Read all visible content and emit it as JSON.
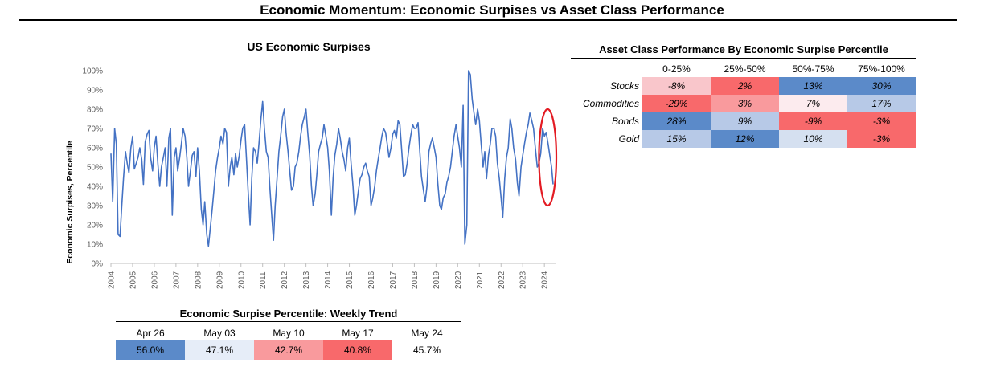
{
  "page_title": "Economic Momentum: Economic Surpises vs Asset Class Performance",
  "chart_data": {
    "type": "line",
    "title": "US Economic Surpises",
    "xlabel": "",
    "ylabel": "Economic Surpises, Percentile",
    "ylim": [
      0,
      100
    ],
    "yticks": [
      "0%",
      "10%",
      "20%",
      "30%",
      "40%",
      "50%",
      "60%",
      "70%",
      "80%",
      "90%",
      "100%"
    ],
    "xticks": [
      "2004",
      "2005",
      "2006",
      "2007",
      "2008",
      "2009",
      "2010",
      "2011",
      "2012",
      "2013",
      "2014",
      "2015",
      "2016",
      "2017",
      "2018",
      "2019",
      "2020",
      "2021",
      "2022",
      "2023",
      "2024"
    ],
    "xlim": [
      2004.0,
      2024.55
    ],
    "series_color": "#4472C4",
    "highlight_color": "#E31B23",
    "series": [
      {
        "x": [
          2004.0,
          2004.08,
          2004.17,
          2004.25,
          2004.33,
          2004.42,
          2004.5,
          2004.58,
          2004.67,
          2004.75,
          2004.83,
          2004.92,
          2005.0,
          2005.08,
          2005.17,
          2005.25,
          2005.33,
          2005.42,
          2005.5,
          2005.58,
          2005.67,
          2005.75,
          2005.83,
          2005.92,
          2006.0,
          2006.08,
          2006.17,
          2006.25,
          2006.33,
          2006.42,
          2006.5,
          2006.58,
          2006.67,
          2006.75,
          2006.83,
          2006.92,
          2007.0,
          2007.08,
          2007.17,
          2007.25,
          2007.33,
          2007.42,
          2007.5,
          2007.58,
          2007.67,
          2007.75,
          2007.83,
          2007.92,
          2008.0,
          2008.08,
          2008.17,
          2008.25,
          2008.33,
          2008.42,
          2008.5,
          2008.58,
          2008.67,
          2008.75,
          2008.83,
          2008.92,
          2009.0,
          2009.08,
          2009.17,
          2009.25,
          2009.33,
          2009.42,
          2009.5,
          2009.58,
          2009.67,
          2009.75,
          2009.83,
          2009.92,
          2010.0,
          2010.08,
          2010.17,
          2010.25,
          2010.33,
          2010.42,
          2010.5,
          2010.58,
          2010.67,
          2010.75,
          2010.83,
          2010.92,
          2011.0,
          2011.08,
          2011.17,
          2011.25,
          2011.33,
          2011.42,
          2011.5,
          2011.58,
          2011.67,
          2011.75,
          2011.83,
          2011.92,
          2012.0,
          2012.08,
          2012.17,
          2012.25,
          2012.33,
          2012.42,
          2012.5,
          2012.58,
          2012.67,
          2012.75,
          2012.83,
          2012.92,
          2013.0,
          2013.08,
          2013.17,
          2013.25,
          2013.33,
          2013.42,
          2013.5,
          2013.58,
          2013.67,
          2013.75,
          2013.83,
          2013.92,
          2014.0,
          2014.08,
          2014.17,
          2014.25,
          2014.33,
          2014.42,
          2014.5,
          2014.58,
          2014.67,
          2014.75,
          2014.83,
          2014.92,
          2015.0,
          2015.08,
          2015.17,
          2015.25,
          2015.33,
          2015.42,
          2015.5,
          2015.58,
          2015.67,
          2015.75,
          2015.83,
          2015.92,
          2016.0,
          2016.08,
          2016.17,
          2016.25,
          2016.33,
          2016.42,
          2016.5,
          2016.58,
          2016.67,
          2016.75,
          2016.83,
          2016.92,
          2017.0,
          2017.08,
          2017.17,
          2017.25,
          2017.33,
          2017.42,
          2017.5,
          2017.58,
          2017.67,
          2017.75,
          2017.83,
          2017.92,
          2018.0,
          2018.08,
          2018.17,
          2018.25,
          2018.33,
          2018.42,
          2018.5,
          2018.58,
          2018.67,
          2018.75,
          2018.83,
          2018.92,
          2019.0,
          2019.08,
          2019.17,
          2019.25,
          2019.33,
          2019.42,
          2019.5,
          2019.58,
          2019.67,
          2019.75,
          2019.83,
          2019.92,
          2020.0,
          2020.08,
          2020.17,
          2020.25,
          2020.33,
          2020.42,
          2020.5,
          2020.58,
          2020.67,
          2020.75,
          2020.83,
          2020.92,
          2021.0,
          2021.08,
          2021.17,
          2021.25,
          2021.33,
          2021.42,
          2021.5,
          2021.58,
          2021.67,
          2021.75,
          2021.83,
          2021.92,
          2022.0,
          2022.08,
          2022.17,
          2022.25,
          2022.33,
          2022.42,
          2022.5,
          2022.58,
          2022.67,
          2022.75,
          2022.83,
          2022.92,
          2023.0,
          2023.08,
          2023.17,
          2023.25,
          2023.33,
          2023.42,
          2023.5,
          2023.58,
          2023.67,
          2023.75,
          2023.83,
          2023.92,
          2024.0,
          2024.08,
          2024.17,
          2024.25,
          2024.33,
          2024.4
        ],
        "values": [
          57,
          32,
          70,
          62,
          15,
          14,
          30,
          44,
          58,
          52,
          47,
          60,
          66,
          49,
          52,
          55,
          60,
          54,
          41,
          63,
          67,
          69,
          55,
          48,
          60,
          66,
          51,
          40,
          50,
          55,
          60,
          40,
          65,
          70,
          25,
          55,
          60,
          48,
          55,
          62,
          70,
          66,
          55,
          40,
          48,
          56,
          58,
          45,
          60,
          48,
          28,
          20,
          32,
          15,
          9,
          18,
          28,
          38,
          48,
          55,
          60,
          66,
          62,
          70,
          68,
          40,
          50,
          55,
          46,
          57,
          50,
          56,
          64,
          70,
          72,
          55,
          38,
          20,
          44,
          60,
          58,
          52,
          62,
          75,
          84,
          70,
          58,
          55,
          40,
          25,
          12,
          30,
          45,
          58,
          66,
          76,
          80,
          68,
          58,
          48,
          38,
          40,
          50,
          52,
          58,
          66,
          72,
          76,
          80,
          68,
          56,
          40,
          30,
          36,
          46,
          58,
          62,
          65,
          72,
          66,
          60,
          48,
          25,
          44,
          56,
          62,
          70,
          65,
          58,
          54,
          48,
          60,
          65,
          52,
          40,
          25,
          30,
          38,
          44,
          46,
          50,
          52,
          48,
          45,
          30,
          34,
          40,
          48,
          54,
          60,
          66,
          70,
          68,
          62,
          55,
          60,
          67,
          69,
          65,
          74,
          72,
          58,
          45,
          46,
          52,
          60,
          66,
          72,
          70,
          70,
          73,
          58,
          45,
          38,
          32,
          40,
          58,
          62,
          65,
          60,
          55,
          42,
          30,
          28,
          34,
          36,
          42,
          45,
          50,
          58,
          66,
          72,
          66,
          60,
          50,
          82,
          10,
          20,
          100,
          98,
          85,
          78,
          72,
          80,
          74,
          62,
          50,
          58,
          44,
          56,
          62,
          70,
          70,
          66,
          52,
          44,
          34,
          24,
          44,
          55,
          60,
          75,
          70,
          60,
          54,
          42,
          35,
          50,
          56,
          62,
          68,
          72,
          78,
          74,
          70,
          60,
          50,
          52,
          57,
          70,
          66,
          68,
          62,
          56,
          50,
          41
        ]
      }
    ],
    "highlight": {
      "shape": "ellipse",
      "x_range": [
        2023.75,
        2024.55
      ],
      "y_range": [
        30,
        80
      ]
    }
  },
  "asset_table": {
    "title": "Asset Class Performance By Economic Surpise Percentile",
    "columns": [
      "0-25%",
      "25%-50%",
      "50%-75%",
      "75%-100%"
    ],
    "rows": [
      {
        "label": "Stocks",
        "values": [
          "-8%",
          "2%",
          "13%",
          "30%"
        ],
        "colors": [
          "#F9C6CB",
          "#F8696B",
          "#5B8AC9",
          "#5B8AC9"
        ]
      },
      {
        "label": "Commodities",
        "values": [
          "-29%",
          "3%",
          "7%",
          "17%"
        ],
        "colors": [
          "#F8696B",
          "#F99A9D",
          "#FCEBEE",
          "#B7C9E7"
        ]
      },
      {
        "label": "Bonds",
        "values": [
          "28%",
          "9%",
          "-9%",
          "-3%"
        ],
        "colors": [
          "#5B8AC9",
          "#B7C9E7",
          "#F8696B",
          "#F8696B"
        ]
      },
      {
        "label": "Gold",
        "values": [
          "15%",
          "12%",
          "10%",
          "-3%"
        ],
        "colors": [
          "#B7C9E7",
          "#5B8AC9",
          "#D5E0F0",
          "#F8696B"
        ]
      }
    ]
  },
  "weekly_table": {
    "title": "Economic Surpise Percentile: Weekly Trend",
    "columns": [
      "Apr 26",
      "May 03",
      "May 10",
      "May 17",
      "May 24"
    ],
    "values": [
      "56.0%",
      "47.1%",
      "42.7%",
      "40.8%",
      "45.7%"
    ],
    "colors": [
      "#5B8AC9",
      "#E6EDF8",
      "#F99A9D",
      "#F8696B",
      "#FFFFFF"
    ]
  }
}
